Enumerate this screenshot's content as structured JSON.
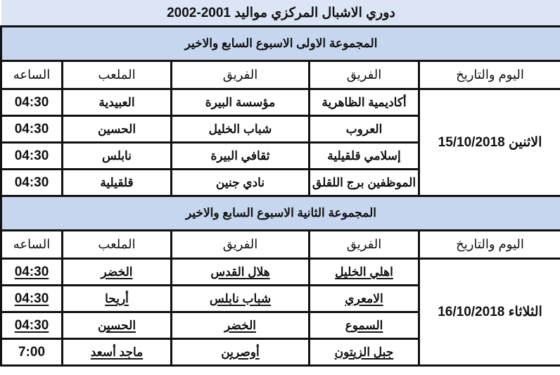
{
  "title": "دوري الاشبال المركزي مواليد 2001-2002",
  "headers": {
    "date": "اليوم والتاريخ",
    "team1": "الفريق",
    "team2": "الفريق",
    "stadium": "الملعب",
    "time": "الساعه"
  },
  "groups": [
    {
      "name": "المجموعة الاولى الاسبوع السابع والاخير",
      "date": "الاثنين 15/10/2018",
      "matches": [
        {
          "team1": "أكاديمية الظاهرية",
          "team2": "مؤسسة البيرة",
          "stadium": "العبيدية",
          "time": "04:30"
        },
        {
          "team1": "العروب",
          "team2": "شباب الخليل",
          "stadium": "الحسين",
          "time": "04:30"
        },
        {
          "team1": "إسلامي قلقيلية",
          "team2": "ثقافي البيرة",
          "stadium": "نابلس",
          "time": "04:30"
        },
        {
          "team1": "الموظفين برج اللقلق",
          "team2": "نادي جنين",
          "stadium": "قلقيلية",
          "time": "04:30"
        }
      ]
    },
    {
      "name": "المجموعة الثانية الاسبوع السابع والاخير",
      "date": "الثلاثاء 16/10/2018",
      "matches": [
        {
          "team1": "اهلي الخليل",
          "team2": "هلال القدس",
          "stadium": "الخضر",
          "time": "04:30"
        },
        {
          "team1": "الامعري",
          "team2": "شباب نابلس",
          "stadium": "أريحا",
          "time": "04:30"
        },
        {
          "team1": "السموع",
          "team2": "الخضر",
          "stadium": "الحسين",
          "time": "04:30"
        },
        {
          "team1": "جبل الزيتون",
          "team2": "أوصرين",
          "stadium": "ماجد أسعد",
          "time": "7:00"
        }
      ]
    }
  ]
}
